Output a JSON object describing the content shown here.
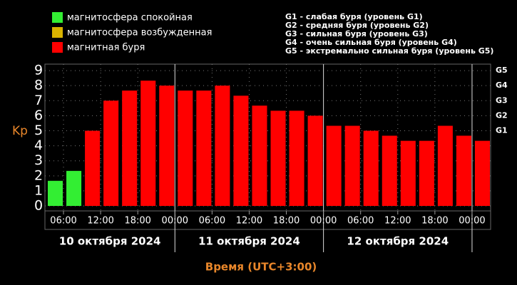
{
  "chart_data": {
    "type": "bar",
    "legend": [
      {
        "label": "магнитосфера спокойная",
        "color": "#33ee33"
      },
      {
        "label": "магнитосфера возбужденная",
        "color": "#d9b300"
      },
      {
        "label": "магнитная буря",
        "color": "#ff0000"
      }
    ],
    "notes": [
      "G1 - слабая буря (уровень G1)",
      "G2 - средняя буря (уровень G2)",
      "G3 - сильная буря (уровень G3)",
      "G4 - очень сильная буря (уровень G4)",
      "G5 - экстремально сильная буря (уровень G5)"
    ],
    "ylabel": "Kp",
    "xlabel": "Время (UTC+3:00)",
    "days": [
      "10 октября 2024",
      "11 октября 2024",
      "12 октября 2024"
    ],
    "x": [
      3,
      6,
      9,
      12,
      15,
      18,
      21,
      24,
      27,
      30,
      33,
      36,
      39,
      42,
      45,
      48,
      51,
      54,
      57,
      60,
      63,
      66,
      69,
      72
    ],
    "values": [
      1.67,
      2.33,
      5,
      7,
      7.67,
      8.33,
      8,
      7.67,
      7.67,
      8,
      7.33,
      6.67,
      6.33,
      6.33,
      6,
      5.33,
      5.33,
      5,
      4.67,
      4.33,
      4.33,
      5.33,
      4.67,
      4.33
    ],
    "colors": [
      "#33ee33",
      "#33ee33",
      "#ff0000",
      "#ff0000",
      "#ff0000",
      "#ff0000",
      "#ff0000",
      "#ff0000",
      "#ff0000",
      "#ff0000",
      "#ff0000",
      "#ff0000",
      "#ff0000",
      "#ff0000",
      "#ff0000",
      "#ff0000",
      "#ff0000",
      "#ff0000",
      "#ff0000",
      "#ff0000",
      "#ff0000",
      "#ff0000",
      "#ff0000",
      "#ff0000"
    ],
    "xlim": [
      3,
      75
    ],
    "xticks": [
      {
        "value": 6,
        "label": "06:00"
      },
      {
        "value": 12,
        "label": "12:00"
      },
      {
        "value": 18,
        "label": "18:00"
      },
      {
        "value": 24,
        "label": "00:00"
      },
      {
        "value": 30,
        "label": "06:00"
      },
      {
        "value": 36,
        "label": "12:00"
      },
      {
        "value": 42,
        "label": "18:00"
      },
      {
        "value": 48,
        "label": "00:00"
      },
      {
        "value": 54,
        "label": "06:00"
      },
      {
        "value": 60,
        "label": "12:00"
      },
      {
        "value": 66,
        "label": "18:00"
      },
      {
        "value": 72,
        "label": "00:00"
      }
    ],
    "ylim": [
      -0.33,
      9.43
    ],
    "yticks": [
      0,
      1,
      2,
      3,
      4,
      5,
      6,
      7,
      8,
      9
    ],
    "y2lim": [
      -0.33,
      9.43
    ],
    "y2ticks": [
      {
        "value": 5,
        "label": "G1"
      },
      {
        "value": 6,
        "label": "G2"
      },
      {
        "value": 7,
        "label": "G3"
      },
      {
        "value": 8,
        "label": "G4"
      },
      {
        "value": 9,
        "label": "G5"
      }
    ],
    "grid": true
  }
}
